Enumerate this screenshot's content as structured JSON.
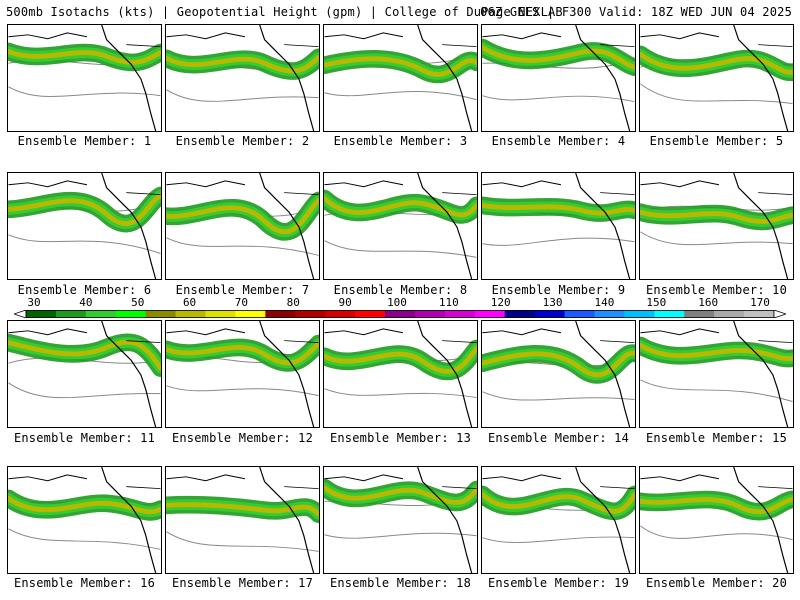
{
  "header": {
    "left": "500mb Isotachs (kts) | Geopotential Height (gpm) | College of DuPage NEXLAB",
    "right": "06Z GEFS | F300 Valid: 18Z WED JUN 04 2025"
  },
  "members": [
    "Ensemble Member: 1",
    "Ensemble Member: 2",
    "Ensemble Member: 3",
    "Ensemble Member: 4",
    "Ensemble Member: 5",
    "Ensemble Member: 6",
    "Ensemble Member: 7",
    "Ensemble Member: 8",
    "Ensemble Member: 9",
    "Ensemble Member: 10",
    "Ensemble Member: 11",
    "Ensemble Member: 12",
    "Ensemble Member: 13",
    "Ensemble Member: 14",
    "Ensemble Member: 15",
    "Ensemble Member: 16",
    "Ensemble Member: 17",
    "Ensemble Member: 18",
    "Ensemble Member: 19",
    "Ensemble Member: 20"
  ],
  "colorbar": {
    "labels": [
      "30",
      "40",
      "50",
      "60",
      "70",
      "80",
      "90",
      "100",
      "110",
      "120",
      "130",
      "140",
      "150",
      "160",
      "170"
    ],
    "colors": [
      "#006400",
      "#1e9b1e",
      "#33cc33",
      "#00ff00",
      "#8b8b00",
      "#b8b800",
      "#e0e000",
      "#ffff00",
      "#8b0000",
      "#b00000",
      "#d40000",
      "#ff0000",
      "#8b008b",
      "#b000b0",
      "#d400d4",
      "#ff00ff",
      "#00008b",
      "#0000cd",
      "#1e5aff",
      "#1e90ff",
      "#00bfff",
      "#00ffff",
      "#808080",
      "#a9a9a9",
      "#c0c0c0"
    ]
  }
}
